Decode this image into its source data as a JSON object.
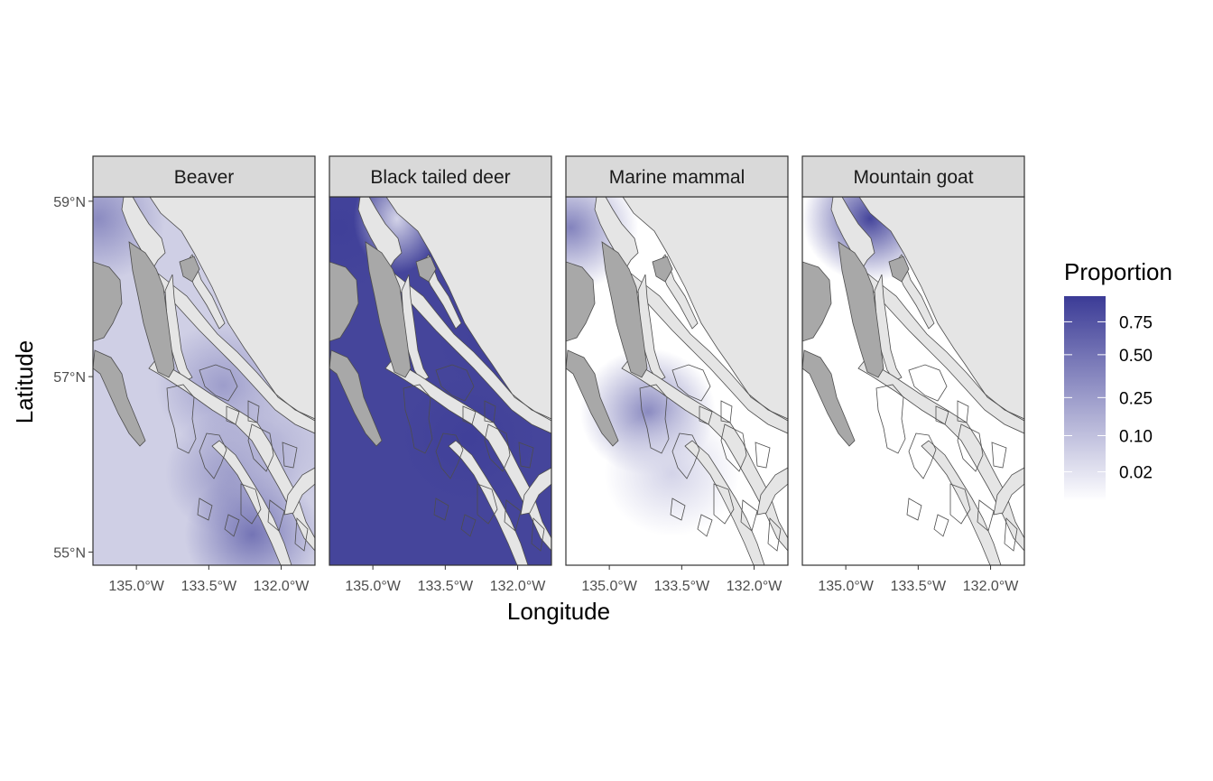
{
  "chart_data": {
    "type": "heatmap",
    "subtype": "faceted choropleth map",
    "xlabel": "Longitude",
    "ylabel": "Latitude",
    "x_ticks": [
      "135.0°W",
      "133.5°W",
      "132.0°W"
    ],
    "x_tick_values": [
      -135.0,
      -133.5,
      -132.0
    ],
    "y_ticks": [
      "59°N",
      "57°N",
      "55°N"
    ],
    "y_tick_values": [
      59,
      57,
      55
    ],
    "xlim": [
      -135.9,
      -131.3
    ],
    "ylim": [
      54.85,
      59.05
    ],
    "legend": {
      "title": "Proportion",
      "position": "right",
      "scale": "sqrt",
      "breaks": [
        0.02,
        0.1,
        0.25,
        0.5,
        0.75
      ],
      "break_labels": [
        "0.02",
        "0.10",
        "0.25",
        "0.50",
        "0.75"
      ],
      "color_low": "#ffffff",
      "color_high": "#3b3b96"
    },
    "colors": {
      "panel_background": "#e5e5e5",
      "strip_background": "#d9d9d9",
      "land_unsampled": "#a8a8a8",
      "coastline": "#4d4d4d"
    },
    "facets": [
      {
        "name": "Beaver",
        "hotspots": [
          {
            "lon": -135.8,
            "lat": 58.8,
            "value": 0.35
          },
          {
            "lon": -133.2,
            "lat": 56.9,
            "value": 0.25
          },
          {
            "lon": -133.0,
            "lat": 55.9,
            "value": 0.3
          },
          {
            "lon": -132.6,
            "lat": 55.2,
            "value": 0.5
          },
          {
            "lon": -132.3,
            "lat": 56.2,
            "value": 0.15
          }
        ],
        "base_value": 0.06
      },
      {
        "name": "Black tailed deer",
        "hotspots": [
          {
            "lon": -135.7,
            "lat": 58.7,
            "value": 0.95
          },
          {
            "lon": -133.0,
            "lat": 56.3,
            "value": 0.95
          },
          {
            "lon": -132.3,
            "lat": 57.5,
            "value": 0.95
          }
        ],
        "base_value": 0.9,
        "low_area": {
          "lon": -134.5,
          "lat": 58.8,
          "value": 0.05
        }
      },
      {
        "name": "Marine mammal",
        "hotspots": [
          {
            "lon": -135.8,
            "lat": 58.7,
            "value": 0.4
          },
          {
            "lon": -134.2,
            "lat": 56.6,
            "value": 0.35
          },
          {
            "lon": -133.7,
            "lat": 55.9,
            "value": 0.05
          }
        ],
        "base_value": 0.0
      },
      {
        "name": "Mountain goat",
        "hotspots": [
          {
            "lon": -134.5,
            "lat": 58.8,
            "value": 0.9
          }
        ],
        "base_value": 0.0
      }
    ]
  }
}
